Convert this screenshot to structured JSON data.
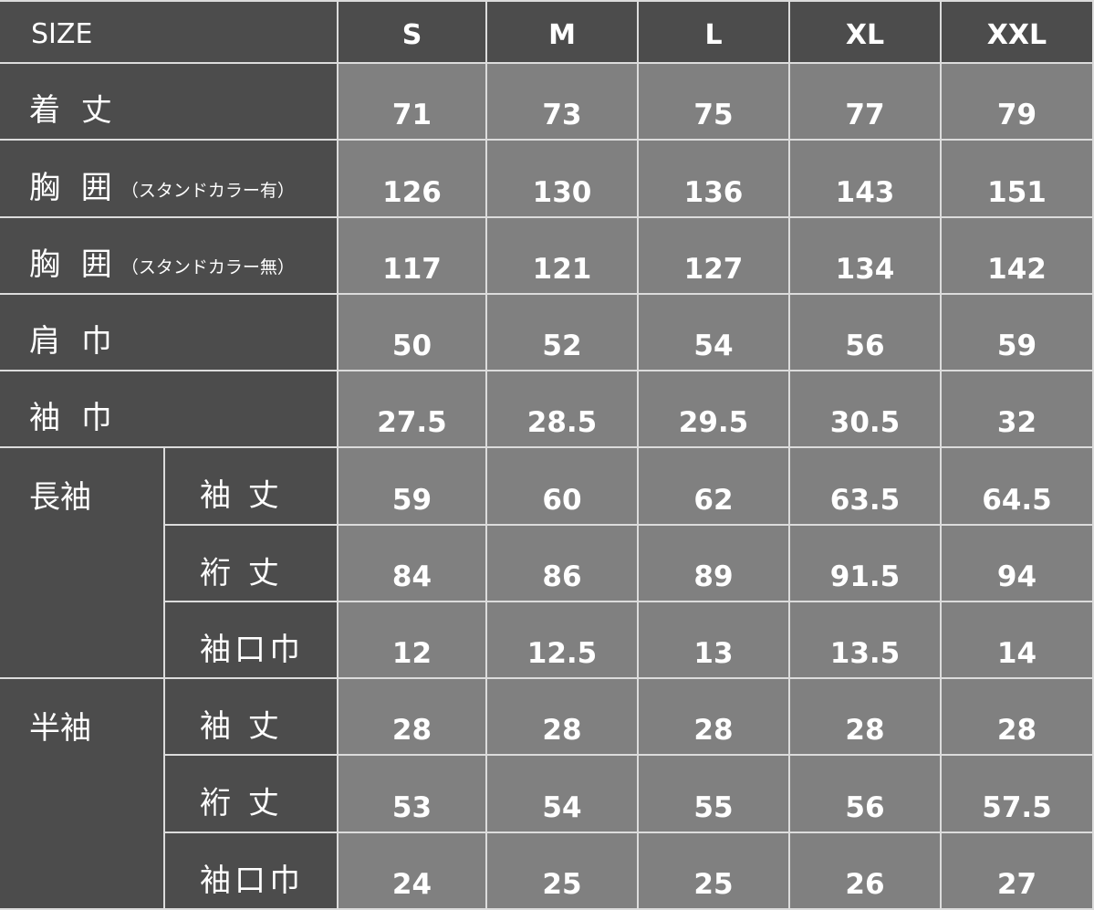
{
  "header": {
    "size_label": "SIZE",
    "sizes": [
      "S",
      "M",
      "L",
      "XL",
      "XXL"
    ]
  },
  "rows": [
    {
      "label": "着 丈",
      "note": "",
      "values": [
        "71",
        "73",
        "75",
        "77",
        "79"
      ]
    },
    {
      "label": "胸 囲",
      "note": "（スタンドカラー有）",
      "values": [
        "126",
        "130",
        "136",
        "143",
        "151"
      ]
    },
    {
      "label": "胸 囲",
      "note": "（スタンドカラー無）",
      "values": [
        "117",
        "121",
        "127",
        "134",
        "142"
      ]
    },
    {
      "label": "肩 巾",
      "note": "",
      "values": [
        "50",
        "52",
        "54",
        "56",
        "59"
      ]
    },
    {
      "label": "袖 巾",
      "note": "",
      "values": [
        "27.5",
        "28.5",
        "29.5",
        "30.5",
        "32"
      ]
    }
  ],
  "groups": [
    {
      "label": "長袖",
      "rows": [
        {
          "label": "袖 丈",
          "values": [
            "59",
            "60",
            "62",
            "63.5",
            "64.5"
          ]
        },
        {
          "label": "裄 丈",
          "values": [
            "84",
            "86",
            "89",
            "91.5",
            "94"
          ]
        },
        {
          "label": "袖口巾",
          "values": [
            "12",
            "12.5",
            "13",
            "13.5",
            "14"
          ]
        }
      ]
    },
    {
      "label": "半袖",
      "rows": [
        {
          "label": "袖 丈",
          "values": [
            "28",
            "28",
            "28",
            "28",
            "28"
          ]
        },
        {
          "label": "裄 丈",
          "values": [
            "53",
            "54",
            "55",
            "56",
            "57.5"
          ]
        },
        {
          "label": "袖口巾",
          "values": [
            "24",
            "25",
            "25",
            "26",
            "27"
          ]
        }
      ]
    }
  ],
  "colors": {
    "label_bg": "#4c4c4c",
    "value_bg": "#808080",
    "border": "#dcdcdc",
    "text": "#ffffff"
  }
}
